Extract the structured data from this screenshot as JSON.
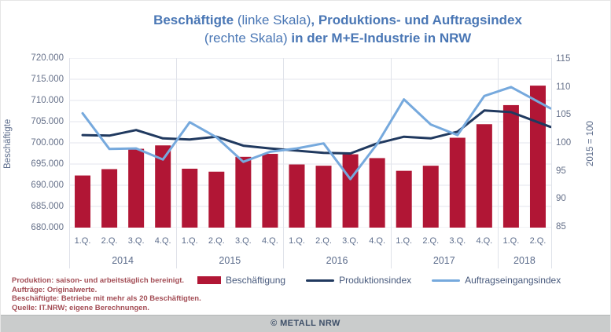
{
  "title": {
    "line1": [
      {
        "text": "Beschäftigte ",
        "bold": true
      },
      {
        "text": "(linke Skala)",
        "bold": false
      },
      {
        "text": ", Produktions- und Auftragsindex",
        "bold": true
      }
    ],
    "line2": [
      {
        "text": "(rechte Skala) ",
        "bold": false
      },
      {
        "text": "in der M+E-Industrie in NRW",
        "bold": true
      }
    ]
  },
  "chart_data": {
    "type": "combo-bar-line",
    "grid": true,
    "legend_position": "bottom",
    "x_groups": [
      {
        "year": "2014",
        "quarters": [
          "1.Q.",
          "2.Q.",
          "3.Q.",
          "4.Q."
        ]
      },
      {
        "year": "2015",
        "quarters": [
          "1.Q.",
          "2.Q.",
          "3.Q.",
          "4.Q."
        ]
      },
      {
        "year": "2016",
        "quarters": [
          "1.Q.",
          "2.Q.",
          "3.Q.",
          "4.Q."
        ]
      },
      {
        "year": "2017",
        "quarters": [
          "1.Q.",
          "2.Q.",
          "3.Q.",
          "4.Q."
        ]
      },
      {
        "year": "2018",
        "quarters": [
          "1.Q.",
          "2.Q."
        ]
      }
    ],
    "left_axis": {
      "label": "Beschäftigte",
      "min": 680000,
      "max": 720000,
      "step": 5000
    },
    "right_axis": {
      "label": "2015 = 100",
      "min": 85,
      "max": 115,
      "step": 5,
      "plot_min": 84.8,
      "plot_max": 115.2
    },
    "series": [
      {
        "name": "Beschäftigung",
        "type": "bar",
        "axis": "left",
        "color": "#b11635",
        "values": [
          692300,
          693800,
          698600,
          699400,
          693900,
          693200,
          696700,
          697400,
          694900,
          694600,
          697300,
          696400,
          693400,
          694600,
          701200,
          704400,
          708900,
          713500
        ]
      },
      {
        "name": "Produktionsindex",
        "type": "line",
        "axis": "right",
        "color": "#20395f",
        "values": [
          101.4,
          101.3,
          102.3,
          100.8,
          100.6,
          101.1,
          99.5,
          99.0,
          98.6,
          98.2,
          98.1,
          99.9,
          101.1,
          100.8,
          102.0,
          105.8,
          105.5,
          103.7
        ]
      },
      {
        "name": "Auftragseingangsindex",
        "type": "line",
        "axis": "right",
        "color": "#76a9dd",
        "values": [
          105.3,
          98.9,
          99.0,
          97.0,
          103.7,
          101.0,
          96.6,
          98.4,
          99.0,
          99.9,
          93.5,
          99.8,
          107.8,
          103.3,
          101.4,
          108.4,
          110.0,
          107.4
        ]
      }
    ],
    "colors": {
      "grid": "#e3e6ed",
      "year_separator": "#dfe2e9",
      "title": "#4a77b5",
      "axis_text": "#5d6d8c"
    }
  },
  "footnotes": [
    "Produktion: saison- und arbeitstäglich bereinigt.",
    "Aufträge: Originalwerte.",
    "Beschäftigte: Betriebe mit mehr als 20 Beschäftigten.",
    "Quelle: IT.NRW; eigene Berechnungen."
  ],
  "footer": {
    "text": "© METALL NRW"
  }
}
